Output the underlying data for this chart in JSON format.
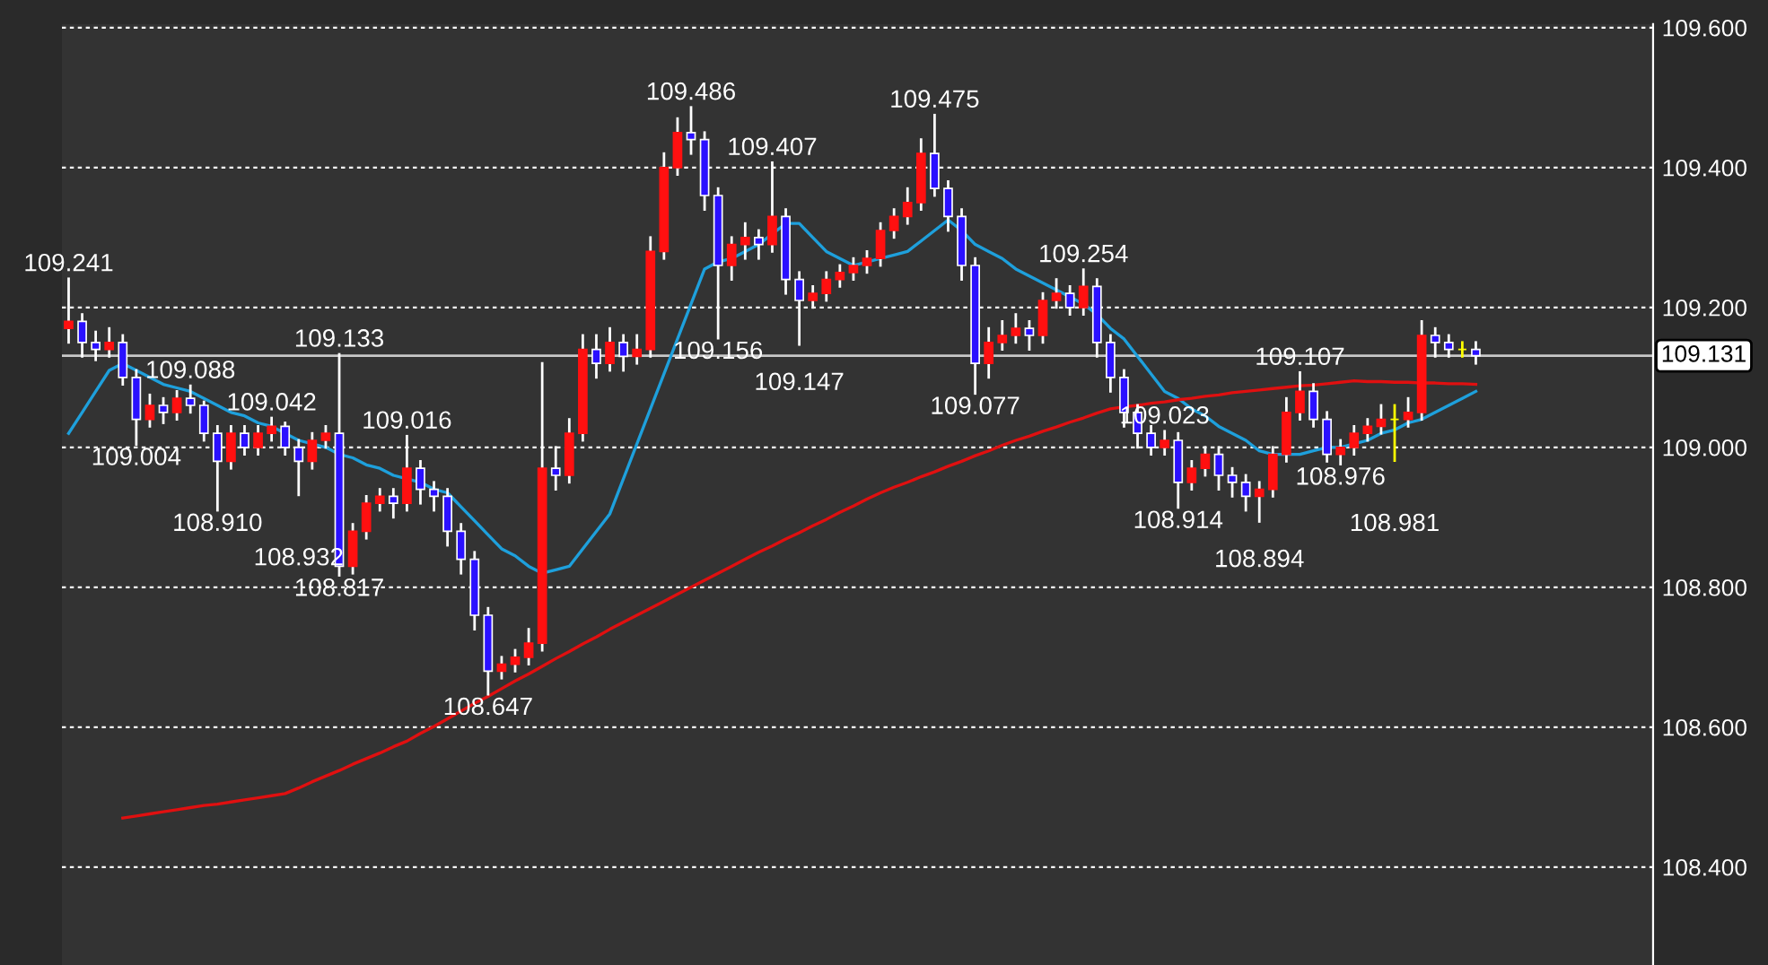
{
  "chart_data": {
    "type": "candlestick",
    "categories": [
      null,
      null,
      null,
      null,
      null,
      null,
      null,
      null,
      null,
      null,
      null,
      null,
      null,
      null,
      null,
      null,
      null,
      null,
      null,
      null,
      null,
      null,
      null,
      null,
      null,
      null,
      null,
      null,
      null,
      null,
      null,
      null,
      null,
      null,
      null,
      null,
      null,
      null,
      null,
      null,
      null,
      null,
      null,
      null,
      null,
      null,
      null,
      null,
      null,
      null,
      null,
      null,
      null,
      null,
      null,
      null,
      null,
      null,
      null,
      null,
      null,
      null,
      null,
      null,
      null,
      null,
      null,
      null,
      null,
      null,
      null,
      null,
      null,
      null,
      null,
      null,
      null,
      null,
      null,
      null,
      null,
      null,
      null,
      null,
      null,
      null,
      null,
      null,
      null,
      null,
      null,
      null,
      null,
      null,
      null,
      null,
      null,
      null,
      null,
      null,
      null,
      null,
      null,
      null,
      null
    ],
    "ohlc": [
      [
        109.17,
        109.241,
        109.15,
        109.18
      ],
      [
        109.18,
        109.19,
        109.13,
        109.15
      ],
      [
        109.15,
        109.165,
        109.125,
        109.14
      ],
      [
        109.14,
        109.17,
        109.13,
        109.15
      ],
      [
        109.15,
        109.16,
        109.09,
        109.1
      ],
      [
        109.1,
        109.11,
        109.004,
        109.04
      ],
      [
        109.04,
        109.075,
        109.03,
        109.06
      ],
      [
        109.06,
        109.07,
        109.035,
        109.05
      ],
      [
        109.05,
        109.08,
        109.04,
        109.07
      ],
      [
        109.07,
        109.088,
        109.05,
        109.06
      ],
      [
        109.06,
        109.065,
        109.01,
        109.02
      ],
      [
        109.02,
        109.03,
        108.91,
        108.98
      ],
      [
        108.98,
        109.03,
        108.97,
        109.02
      ],
      [
        109.02,
        109.03,
        108.99,
        109.0
      ],
      [
        109.0,
        109.03,
        108.99,
        109.02
      ],
      [
        109.02,
        109.042,
        109.01,
        109.03
      ],
      [
        109.03,
        109.035,
        108.99,
        109.0
      ],
      [
        109.0,
        109.01,
        108.932,
        108.98
      ],
      [
        108.98,
        109.02,
        108.97,
        109.01
      ],
      [
        109.01,
        109.03,
        109.0,
        109.02
      ],
      [
        109.02,
        109.133,
        108.817,
        108.83
      ],
      [
        108.83,
        108.89,
        108.82,
        108.88
      ],
      [
        108.88,
        108.93,
        108.87,
        108.92
      ],
      [
        108.92,
        108.94,
        108.91,
        108.93
      ],
      [
        108.93,
        108.94,
        108.9,
        108.92
      ],
      [
        108.92,
        109.016,
        108.91,
        108.97
      ],
      [
        108.97,
        108.98,
        108.92,
        108.94
      ],
      [
        108.94,
        108.95,
        108.91,
        108.93
      ],
      [
        108.93,
        108.94,
        108.86,
        108.88
      ],
      [
        108.88,
        108.89,
        108.82,
        108.84
      ],
      [
        108.84,
        108.85,
        108.74,
        108.76
      ],
      [
        108.76,
        108.77,
        108.647,
        108.68
      ],
      [
        108.68,
        108.7,
        108.67,
        108.69
      ],
      [
        108.69,
        108.71,
        108.68,
        108.7
      ],
      [
        108.7,
        108.74,
        108.69,
        108.72
      ],
      [
        108.72,
        109.12,
        108.71,
        108.97
      ],
      [
        108.97,
        109.0,
        108.94,
        108.96
      ],
      [
        108.96,
        109.04,
        108.95,
        109.02
      ],
      [
        109.02,
        109.16,
        109.01,
        109.14
      ],
      [
        109.14,
        109.16,
        109.1,
        109.12
      ],
      [
        109.12,
        109.17,
        109.11,
        109.15
      ],
      [
        109.15,
        109.16,
        109.11,
        109.13
      ],
      [
        109.13,
        109.16,
        109.12,
        109.14
      ],
      [
        109.14,
        109.3,
        109.13,
        109.28
      ],
      [
        109.28,
        109.42,
        109.27,
        109.4
      ],
      [
        109.4,
        109.47,
        109.39,
        109.45
      ],
      [
        109.45,
        109.486,
        109.42,
        109.44
      ],
      [
        109.44,
        109.45,
        109.34,
        109.36
      ],
      [
        109.36,
        109.37,
        109.156,
        109.26
      ],
      [
        109.26,
        109.3,
        109.24,
        109.29
      ],
      [
        109.29,
        109.32,
        109.27,
        109.3
      ],
      [
        109.3,
        109.31,
        109.27,
        109.29
      ],
      [
        109.29,
        109.407,
        109.28,
        109.33
      ],
      [
        109.33,
        109.34,
        109.22,
        109.24
      ],
      [
        109.24,
        109.25,
        109.147,
        109.21
      ],
      [
        109.21,
        109.23,
        109.2,
        109.22
      ],
      [
        109.22,
        109.25,
        109.21,
        109.24
      ],
      [
        109.24,
        109.26,
        109.23,
        109.25
      ],
      [
        109.25,
        109.27,
        109.24,
        109.26
      ],
      [
        109.26,
        109.28,
        109.25,
        109.27
      ],
      [
        109.27,
        109.32,
        109.26,
        109.31
      ],
      [
        109.31,
        109.34,
        109.3,
        109.33
      ],
      [
        109.33,
        109.37,
        109.32,
        109.35
      ],
      [
        109.35,
        109.44,
        109.34,
        109.42
      ],
      [
        109.42,
        109.475,
        109.36,
        109.37
      ],
      [
        109.37,
        109.38,
        109.31,
        109.33
      ],
      [
        109.33,
        109.34,
        109.24,
        109.26
      ],
      [
        109.26,
        109.27,
        109.077,
        109.12
      ],
      [
        109.12,
        109.17,
        109.1,
        109.15
      ],
      [
        109.15,
        109.18,
        109.14,
        109.16
      ],
      [
        109.16,
        109.19,
        109.15,
        109.17
      ],
      [
        109.17,
        109.18,
        109.14,
        109.16
      ],
      [
        109.16,
        109.22,
        109.15,
        109.21
      ],
      [
        109.21,
        109.24,
        109.2,
        109.22
      ],
      [
        109.22,
        109.23,
        109.19,
        109.2
      ],
      [
        109.2,
        109.254,
        109.19,
        109.23
      ],
      [
        109.23,
        109.24,
        109.13,
        109.15
      ],
      [
        109.15,
        109.16,
        109.08,
        109.1
      ],
      [
        109.1,
        109.11,
        109.03,
        109.05
      ],
      [
        109.05,
        109.06,
        109.0,
        109.02
      ],
      [
        109.02,
        109.03,
        108.99,
        109.0
      ],
      [
        109.0,
        109.023,
        108.99,
        109.01
      ],
      [
        109.01,
        109.02,
        108.914,
        108.95
      ],
      [
        108.95,
        108.98,
        108.94,
        108.97
      ],
      [
        108.97,
        109.0,
        108.96,
        108.99
      ],
      [
        108.99,
        109.0,
        108.94,
        108.96
      ],
      [
        108.96,
        108.97,
        108.93,
        108.95
      ],
      [
        108.95,
        108.96,
        108.91,
        108.93
      ],
      [
        108.93,
        108.95,
        108.894,
        108.94
      ],
      [
        108.94,
        109.0,
        108.93,
        108.99
      ],
      [
        108.99,
        109.07,
        108.98,
        109.05
      ],
      [
        109.05,
        109.107,
        109.04,
        109.08
      ],
      [
        109.08,
        109.09,
        109.03,
        109.04
      ],
      [
        109.04,
        109.05,
        108.98,
        108.99
      ],
      [
        108.99,
        109.01,
        108.976,
        109.0
      ],
      [
        109.0,
        109.03,
        108.99,
        109.02
      ],
      [
        109.02,
        109.04,
        109.01,
        109.03
      ],
      [
        109.03,
        109.06,
        109.02,
        109.04
      ],
      [
        109.04,
        109.06,
        108.981,
        109.04
      ],
      [
        109.04,
        109.07,
        109.03,
        109.05
      ],
      [
        109.05,
        109.18,
        109.04,
        109.16
      ],
      [
        109.16,
        109.17,
        109.13,
        109.15
      ],
      [
        109.15,
        109.16,
        109.13,
        109.14
      ],
      [
        109.14,
        109.15,
        109.13,
        109.14
      ],
      [
        109.14,
        109.15,
        109.12,
        109.131
      ]
    ],
    "series": [
      {
        "type": "line",
        "color": "#1ea0dc",
        "values": [
          109.02,
          109.05,
          109.08,
          109.11,
          109.12,
          109.11,
          109.1,
          109.09,
          109.085,
          109.08,
          109.07,
          109.06,
          109.05,
          109.045,
          109.035,
          109.03,
          109.02,
          109.01,
          109.005,
          109.0,
          108.99,
          108.985,
          108.975,
          108.97,
          108.96,
          108.955,
          108.95,
          108.94,
          108.935,
          108.915,
          108.895,
          108.875,
          108.855,
          108.845,
          108.83,
          108.82,
          108.825,
          108.83,
          108.855,
          108.88,
          108.905,
          108.955,
          109.005,
          109.055,
          109.105,
          109.155,
          109.205,
          109.255,
          109.265,
          109.27,
          109.28,
          109.29,
          109.305,
          109.32,
          109.32,
          109.3,
          109.28,
          109.27,
          109.26,
          109.265,
          109.27,
          109.275,
          109.28,
          109.295,
          109.31,
          109.325,
          109.31,
          109.29,
          109.28,
          109.27,
          109.255,
          109.245,
          109.235,
          109.225,
          109.215,
          109.205,
          109.19,
          109.17,
          109.155,
          109.13,
          109.105,
          109.08,
          109.07,
          109.055,
          109.045,
          109.03,
          109.02,
          109.01,
          108.995,
          108.99,
          108.99,
          108.99,
          108.995,
          109.0,
          109.0,
          109.005,
          109.01,
          109.02,
          109.025,
          109.035,
          109.04,
          109.05,
          109.06,
          109.07,
          109.08
        ]
      },
      {
        "type": "line",
        "color": "#e01010",
        "values": [
          null,
          null,
          null,
          null,
          108.47,
          108.473,
          108.476,
          108.479,
          108.482,
          108.485,
          108.488,
          108.49,
          108.493,
          108.496,
          108.499,
          108.502,
          108.505,
          108.513,
          108.522,
          108.53,
          108.538,
          108.547,
          108.555,
          108.563,
          108.572,
          108.58,
          108.591,
          108.601,
          108.612,
          108.623,
          108.634,
          108.644,
          108.655,
          108.666,
          108.676,
          108.687,
          108.698,
          108.708,
          108.719,
          108.729,
          108.74,
          108.75,
          108.76,
          108.77,
          108.78,
          108.79,
          108.8,
          108.81,
          108.82,
          108.83,
          108.84,
          108.85,
          108.859,
          108.869,
          108.878,
          108.888,
          108.897,
          108.907,
          108.916,
          108.926,
          108.935,
          108.943,
          108.95,
          108.958,
          108.965,
          108.973,
          108.98,
          108.988,
          108.995,
          109.003,
          109.01,
          109.016,
          109.023,
          109.029,
          109.036,
          109.042,
          109.049,
          109.055,
          109.058,
          109.06,
          109.063,
          109.065,
          109.068,
          109.07,
          109.073,
          109.075,
          109.078,
          109.08,
          109.082,
          109.084,
          109.086,
          109.088,
          109.089,
          109.091,
          109.093,
          109.095,
          109.094,
          109.094,
          109.093,
          109.093,
          109.092,
          109.092,
          109.091,
          109.091,
          109.09
        ]
      }
    ],
    "ylim": [
      108.26,
      109.605
    ],
    "yticks": [
      {
        "value": 108.4,
        "label": "108.400"
      },
      {
        "value": 108.6,
        "label": "108.600"
      },
      {
        "value": 108.8,
        "label": "108.800"
      },
      {
        "value": 109.0,
        "label": "109.000"
      },
      {
        "value": 109.2,
        "label": "109.200"
      },
      {
        "value": 109.4,
        "label": "109.400"
      },
      {
        "value": 109.6,
        "label": "109.600"
      }
    ],
    "tick_labels": "y",
    "grid": "y",
    "ref_lines": [
      {
        "axis": "y",
        "value": 109.131,
        "label": "109.131",
        "color": "#c8c8c8"
      }
    ],
    "annotations": [
      {
        "text": "109.241",
        "y": 109.241
      },
      {
        "text": "109.004",
        "y": 109.004
      },
      {
        "text": "109.088",
        "y": 109.088
      },
      {
        "text": "108.910",
        "y": 108.91
      },
      {
        "text": "109.042",
        "y": 109.042
      },
      {
        "text": "108.932",
        "y": 108.932
      },
      {
        "text": "109.133",
        "y": 109.133
      },
      {
        "text": "108.817",
        "y": 108.817
      },
      {
        "text": "109.016",
        "y": 109.016
      },
      {
        "text": "108.647",
        "y": 108.647
      },
      {
        "text": "109.486",
        "y": 109.486
      },
      {
        "text": "109.156",
        "y": 109.156
      },
      {
        "text": "109.407",
        "y": 109.407
      },
      {
        "text": "109.147",
        "y": 109.147
      },
      {
        "text": "109.475",
        "y": 109.475
      },
      {
        "text": "109.077",
        "y": 109.077
      },
      {
        "text": "109.254",
        "y": 109.254
      },
      {
        "text": "109.023",
        "y": 109.023
      },
      {
        "text": "108.914",
        "y": 108.914
      },
      {
        "text": "108.894",
        "y": 108.894
      },
      {
        "text": "109.107",
        "y": 109.107
      },
      {
        "text": "108.976",
        "y": 108.976
      },
      {
        "text": "108.981",
        "y": 108.981
      }
    ]
  }
}
